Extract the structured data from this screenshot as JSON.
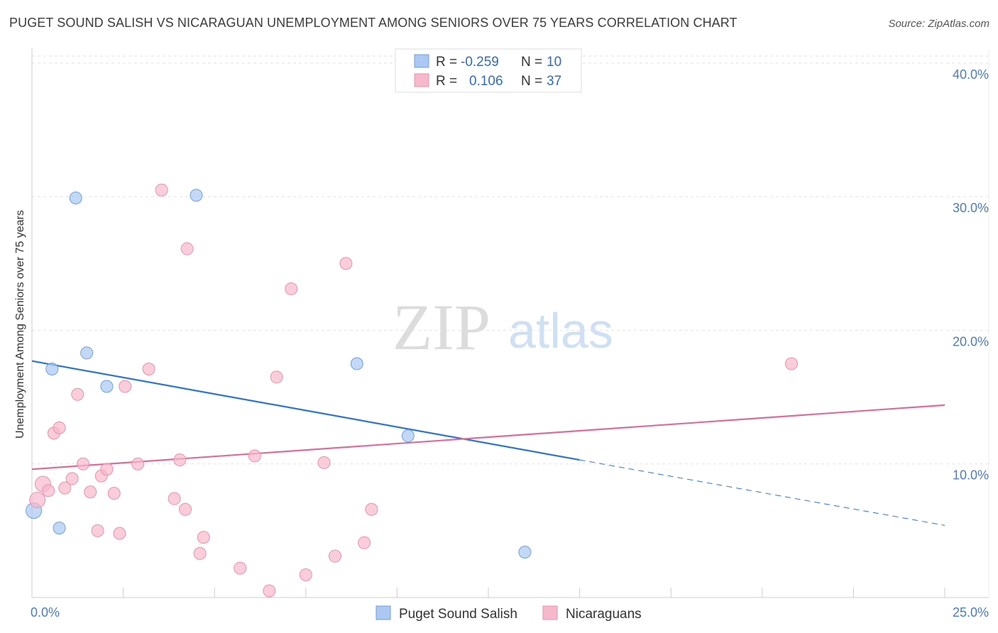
{
  "header": {
    "title": "PUGET SOUND SALISH VS NICARAGUAN UNEMPLOYMENT AMONG SENIORS OVER 75 YEARS CORRELATION CHART",
    "source": "Source: ZipAtlas.com"
  },
  "watermark": {
    "zip": "ZIP",
    "atlas": "atlas"
  },
  "legend_top": {
    "rows": [
      {
        "r_label": "R = ",
        "r_value": "-0.259",
        "n_label": "N = ",
        "n_value": "10",
        "color": "#aac8f2"
      },
      {
        "r_label": "R = ",
        "r_value": "0.106",
        "n_label": "N = ",
        "n_value": "37",
        "color": "#f6b8cb"
      }
    ]
  },
  "legend_bottom": [
    {
      "label": "Puget Sound Salish",
      "color": "#aac8f2"
    },
    {
      "label": "Nicaraguans",
      "color": "#f6b8cb"
    }
  ],
  "chart_data": {
    "type": "scatter",
    "ylabel": "Unemployment Among Seniors over 75 years",
    "xlabel": "",
    "xlim": [
      0,
      25
    ],
    "ylim": [
      0,
      41
    ],
    "x_tick_labels": [
      "0.0%",
      "25.0%"
    ],
    "y_ticks": [
      10,
      20,
      30,
      40
    ],
    "y_tick_labels": [
      "10.0%",
      "20.0%",
      "30.0%",
      "40.0%"
    ],
    "grid": true,
    "series": [
      {
        "name": "Puget Sound Salish",
        "color": "#aac8f2",
        "stroke": "#6f9fe0",
        "line_color": "#2a74d6",
        "points": [
          [
            0.05,
            6.5
          ],
          [
            0.55,
            17.1
          ],
          [
            0.75,
            5.2
          ],
          [
            1.2,
            29.9
          ],
          [
            1.5,
            18.3
          ],
          [
            2.05,
            15.8
          ],
          [
            4.5,
            30.1
          ],
          [
            8.9,
            17.5
          ],
          [
            10.3,
            12.1
          ],
          [
            13.5,
            3.4
          ]
        ],
        "trend": {
          "x0": 0,
          "y0": 17.7,
          "x1": 15,
          "y1": 10.3,
          "dash_to_x": 25,
          "dash_to_y": 5.4
        }
      },
      {
        "name": "Nicaraguans",
        "color": "#f6b8cb",
        "stroke": "#ee8fad",
        "line_color": "#e06b96",
        "points": [
          [
            0.15,
            7.3
          ],
          [
            0.3,
            8.5
          ],
          [
            0.45,
            8.0
          ],
          [
            0.6,
            12.3
          ],
          [
            0.75,
            12.7
          ],
          [
            0.9,
            8.2
          ],
          [
            1.1,
            8.9
          ],
          [
            1.25,
            15.2
          ],
          [
            1.4,
            10.0
          ],
          [
            1.6,
            7.9
          ],
          [
            1.8,
            5.0
          ],
          [
            1.9,
            9.1
          ],
          [
            2.05,
            9.6
          ],
          [
            2.25,
            7.8
          ],
          [
            2.4,
            4.8
          ],
          [
            2.55,
            15.8
          ],
          [
            2.9,
            10.0
          ],
          [
            3.2,
            17.1
          ],
          [
            3.55,
            30.5
          ],
          [
            3.9,
            7.4
          ],
          [
            4.05,
            10.3
          ],
          [
            4.25,
            26.1
          ],
          [
            4.2,
            6.6
          ],
          [
            4.6,
            3.3
          ],
          [
            4.7,
            4.5
          ],
          [
            5.7,
            2.2
          ],
          [
            6.1,
            10.6
          ],
          [
            6.5,
            0.5
          ],
          [
            6.7,
            16.5
          ],
          [
            7.1,
            23.1
          ],
          [
            7.5,
            1.7
          ],
          [
            8.0,
            10.1
          ],
          [
            8.3,
            3.1
          ],
          [
            8.6,
            25.0
          ],
          [
            9.1,
            4.1
          ],
          [
            9.3,
            6.6
          ],
          [
            20.8,
            17.5
          ]
        ],
        "trend": {
          "x0": 0,
          "y0": 9.6,
          "x1": 25,
          "y1": 14.4
        }
      }
    ]
  }
}
